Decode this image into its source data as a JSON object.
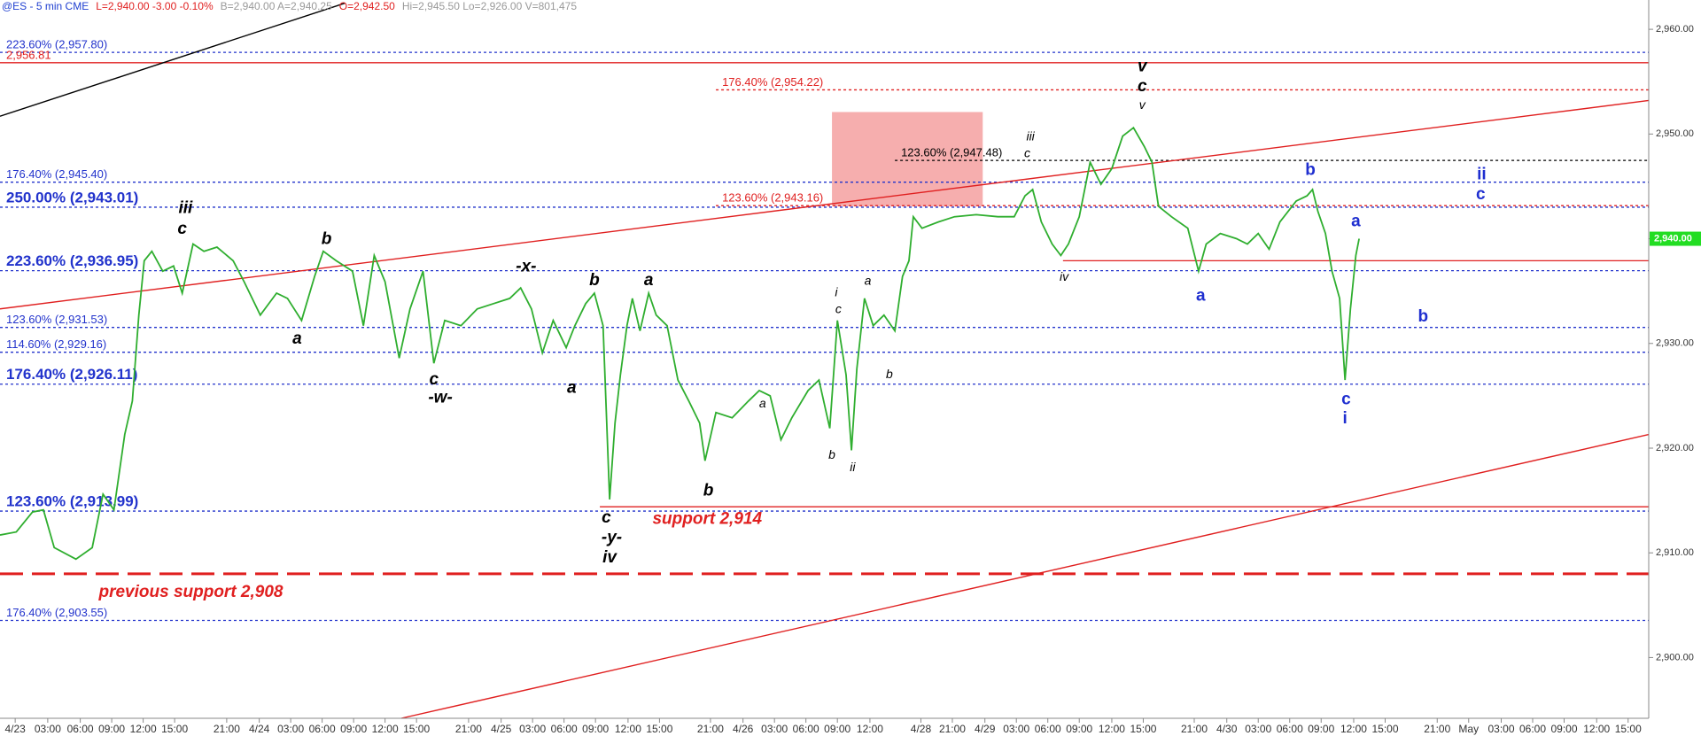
{
  "chart_data": {
    "type": "line",
    "header": [
      {
        "text": "@ES - 5 min  CME",
        "color": "#1f3fd0"
      },
      {
        "text": "L=2,940.00  -3.00  -0.10%",
        "color": "#e02020"
      },
      {
        "text": "B=2,940.00  A=2,940.25",
        "color": "#999999"
      },
      {
        "text": "O=2,942.50",
        "color": "#e02020"
      },
      {
        "text": "Hi=2,945.50  Lo=2,926.00  V=801,475",
        "color": "#999999"
      }
    ],
    "ylim": [
      2894.2,
      2962.8
    ],
    "yticks": [
      {
        "value": 2900,
        "label": "2,900.00"
      },
      {
        "value": 2910,
        "label": "2,910.00"
      },
      {
        "value": 2920,
        "label": "2,920.00"
      },
      {
        "value": 2930,
        "label": "2,930.00"
      },
      {
        "value": 2940,
        "label": "2,940.00"
      },
      {
        "value": 2950,
        "label": "2,950.00"
      },
      {
        "value": 2960,
        "label": "2,960.00"
      }
    ],
    "xlim": [
      0,
      152
    ],
    "xticks": [
      {
        "value": 1.4,
        "label": "4/23"
      },
      {
        "value": 4.4,
        "label": "03:00"
      },
      {
        "value": 7.4,
        "label": "06:00"
      },
      {
        "value": 10.3,
        "label": "09:00"
      },
      {
        "value": 13.2,
        "label": "12:00"
      },
      {
        "value": 16.1,
        "label": "15:00"
      },
      {
        "value": 20.9,
        "label": "21:00"
      },
      {
        "value": 23.9,
        "label": "4/24"
      },
      {
        "value": 26.8,
        "label": "03:00"
      },
      {
        "value": 29.7,
        "label": "06:00"
      },
      {
        "value": 32.6,
        "label": "09:00"
      },
      {
        "value": 35.5,
        "label": "12:00"
      },
      {
        "value": 38.4,
        "label": "15:00"
      },
      {
        "value": 43.2,
        "label": "21:00"
      },
      {
        "value": 46.2,
        "label": "4/25"
      },
      {
        "value": 49.1,
        "label": "03:00"
      },
      {
        "value": 52.0,
        "label": "06:00"
      },
      {
        "value": 54.9,
        "label": "09:00"
      },
      {
        "value": 57.9,
        "label": "12:00"
      },
      {
        "value": 60.8,
        "label": "15:00"
      },
      {
        "value": 65.5,
        "label": "21:00"
      },
      {
        "value": 68.5,
        "label": "4/26"
      },
      {
        "value": 71.4,
        "label": "03:00"
      },
      {
        "value": 74.3,
        "label": "06:00"
      },
      {
        "value": 77.2,
        "label": "09:00"
      },
      {
        "value": 80.2,
        "label": "12:00"
      },
      {
        "value": 84.9,
        "label": "4/28"
      },
      {
        "value": 87.8,
        "label": "21:00"
      },
      {
        "value": 90.8,
        "label": "4/29"
      },
      {
        "value": 93.7,
        "label": "03:00"
      },
      {
        "value": 96.6,
        "label": "06:00"
      },
      {
        "value": 99.5,
        "label": "09:00"
      },
      {
        "value": 102.5,
        "label": "12:00"
      },
      {
        "value": 105.4,
        "label": "15:00"
      },
      {
        "value": 110.1,
        "label": "21:00"
      },
      {
        "value": 113.1,
        "label": "4/30"
      },
      {
        "value": 116.0,
        "label": "03:00"
      },
      {
        "value": 118.9,
        "label": "06:00"
      },
      {
        "value": 121.8,
        "label": "09:00"
      },
      {
        "value": 124.8,
        "label": "12:00"
      },
      {
        "value": 127.7,
        "label": "15:00"
      },
      {
        "value": 132.5,
        "label": "21:00"
      },
      {
        "value": 135.4,
        "label": "May"
      },
      {
        "value": 138.4,
        "label": "03:00"
      },
      {
        "value": 141.3,
        "label": "06:00"
      },
      {
        "value": 144.2,
        "label": "09:00"
      },
      {
        "value": 147.2,
        "label": "12:00"
      },
      {
        "value": 150.1,
        "label": "15:00"
      }
    ],
    "last_price": {
      "value": 2940,
      "label": "2,940.00",
      "color": "#22dd22"
    },
    "series": [
      {
        "color": "#2fae2f",
        "x": [
          0,
          1.5,
          3,
          4,
          5,
          7,
          8.5,
          9.5,
          10.5,
          11.5,
          12.2,
          12.8,
          13.3,
          14,
          15,
          16,
          16.8,
          17.8,
          18.8,
          20,
          21.5,
          22.5,
          24,
          25.5,
          26.5,
          27.8,
          29,
          29.8,
          31,
          32.5,
          33.5,
          34.5,
          35.5,
          36.8,
          37.8,
          39,
          40,
          41,
          42.5,
          44,
          45.5,
          47,
          48,
          49,
          50,
          51,
          52.2,
          53,
          54,
          54.8,
          55.6,
          56.2,
          56.7,
          57.2,
          57.8,
          58.3,
          59,
          59.8,
          60.5,
          61.5,
          62.5,
          63.5,
          64.5,
          65,
          66,
          67.5,
          69,
          70,
          71,
          72,
          73,
          74.5,
          75.5,
          76.5,
          77.2,
          78,
          78.5,
          79,
          79.7,
          80.5,
          81.5,
          82.5,
          83.2,
          83.8,
          84.2,
          85,
          86.5,
          88,
          90,
          92,
          93.5,
          94.5,
          95.2,
          96,
          97,
          97.8,
          98.5,
          99.5,
          100.5,
          101.5,
          102.5,
          103.5,
          104.5,
          105.5,
          106.2,
          106.8,
          108,
          109.5,
          110.5,
          111.2,
          112.5,
          114,
          115,
          116,
          117,
          118,
          119.5,
          120.5,
          121,
          121.5,
          122.2,
          122.8,
          123.5,
          124,
          124.5,
          125,
          125.3
        ],
        "values": [
          2911.7,
          2912.0,
          2913.9,
          2914.1,
          2910.5,
          2909.4,
          2910.5,
          2915.6,
          2914.1,
          2921.3,
          2924.5,
          2932.7,
          2937.9,
          2938.8,
          2936.9,
          2937.4,
          2934.8,
          2939.5,
          2938.8,
          2939.2,
          2937.9,
          2935.9,
          2932.7,
          2934.8,
          2934.3,
          2932.2,
          2936.4,
          2938.8,
          2937.9,
          2936.9,
          2931.7,
          2938.4,
          2935.9,
          2928.6,
          2933.3,
          2936.9,
          2928.1,
          2932.2,
          2931.7,
          2933.3,
          2933.8,
          2934.3,
          2935.3,
          2933.3,
          2929.1,
          2932.2,
          2929.6,
          2931.7,
          2933.8,
          2934.8,
          2931.7,
          2915.1,
          2922.4,
          2927.0,
          2931.7,
          2934.3,
          2931.2,
          2934.8,
          2932.7,
          2931.7,
          2926.5,
          2924.5,
          2922.4,
          2918.8,
          2923.4,
          2922.9,
          2924.5,
          2925.5,
          2925.0,
          2920.8,
          2922.9,
          2925.5,
          2926.5,
          2921.9,
          2932.2,
          2927.0,
          2919.8,
          2927.6,
          2934.3,
          2931.7,
          2932.7,
          2931.2,
          2936.4,
          2937.9,
          2942.1,
          2941.0,
          2941.6,
          2942.1,
          2942.3,
          2942.1,
          2942.1,
          2944.1,
          2944.7,
          2941.6,
          2939.5,
          2938.4,
          2939.5,
          2942.1,
          2947.3,
          2945.2,
          2946.7,
          2949.8,
          2950.6,
          2948.8,
          2947.3,
          2943.1,
          2942.1,
          2941.0,
          2936.9,
          2939.5,
          2940.5,
          2940.0,
          2939.5,
          2940.5,
          2939.0,
          2941.6,
          2943.6,
          2944.1,
          2944.7,
          2942.6,
          2940.5,
          2936.9,
          2934.3,
          2926.5,
          2933.3,
          2938.4,
          2940.0
        ]
      }
    ],
    "levels": [
      {
        "label": "223.60% (2,957.80)",
        "value": 2957.8,
        "color": "#2233cc",
        "style": "dotted",
        "bold": false,
        "x_start": 0
      },
      {
        "label": "2,956.81",
        "value": 2956.81,
        "color": "#e02020",
        "style": "solid",
        "bold": false,
        "x_start": 0
      },
      {
        "label": "176.40% (2,954.22)",
        "value": 2954.22,
        "color": "#e02020",
        "style": "dotted",
        "bold": false,
        "x_start": 66
      },
      {
        "label": "123.60% (2,947.48)",
        "value": 2947.48,
        "color": "#000000",
        "style": "dotted",
        "bold": false,
        "x_start": 82.5
      },
      {
        "label": "176.40% (2,945.40)",
        "value": 2945.4,
        "color": "#2233cc",
        "style": "dotted",
        "bold": false,
        "x_start": 0
      },
      {
        "label": "123.60% (2,943.16)",
        "value": 2943.16,
        "color": "#e02020",
        "style": "dotted",
        "bold": false,
        "x_start": 66
      },
      {
        "label": "250.00% (2,943.01)",
        "value": 2943.01,
        "color": "#2233cc",
        "style": "dotted",
        "bold": true,
        "x_start": 0
      },
      {
        "value": 2937.9,
        "color": "#e02020",
        "style": "solid",
        "bold": false,
        "x_start": 98
      },
      {
        "label": "223.60% (2,936.95)",
        "value": 2936.95,
        "color": "#2233cc",
        "style": "dotted",
        "bold": true,
        "x_start": 0
      },
      {
        "label": "123.60% (2,931.53)",
        "value": 2931.53,
        "color": "#2233cc",
        "style": "dotted",
        "bold": false,
        "x_start": 0
      },
      {
        "label": "114.60% (2,929.16)",
        "value": 2929.16,
        "color": "#2233cc",
        "style": "dotted",
        "bold": false,
        "x_start": 0
      },
      {
        "label": "176.40% (2,926.11)",
        "value": 2926.11,
        "color": "#2233cc",
        "style": "dotted",
        "bold": true,
        "x_start": 0
      },
      {
        "value": 2914.4,
        "color": "#e02020",
        "style": "solid",
        "bold": false,
        "x_start": 55.3
      },
      {
        "label": "123.60% (2,913.99)",
        "value": 2913.99,
        "color": "#2233cc",
        "style": "dotted",
        "bold": true,
        "x_start": 0
      },
      {
        "value": 2908,
        "color": "#e02020",
        "style": "dashed",
        "bold": false,
        "x_start": 0
      },
      {
        "label": "176.40% (2,903.55)",
        "value": 2903.55,
        "color": "#2233cc",
        "style": "dotted",
        "bold": false,
        "x_start": 0
      }
    ],
    "trendlines": [
      {
        "x": [
          0,
          31.8
        ],
        "values": [
          2951.7,
          2962.5
        ],
        "color": "#000000"
      },
      {
        "x": [
          0,
          152
        ],
        "values": [
          2933.3,
          2953.2
        ],
        "color": "#e02020"
      },
      {
        "x": [
          37,
          152
        ],
        "values": [
          2894.2,
          2921.3
        ],
        "color": "#e02020"
      }
    ],
    "zone": {
      "x": [
        76.7,
        90.6
      ],
      "values": [
        2952.1,
        2943.1
      ],
      "color": "#f4a0a0"
    },
    "annotations": [
      {
        "text": "iii",
        "x": 17.1,
        "y": 2942.9,
        "color": "#000000",
        "size": "large"
      },
      {
        "text": "c",
        "x": 16.8,
        "y": 2940.9,
        "color": "#000000",
        "size": "large"
      },
      {
        "text": "b",
        "x": 30.1,
        "y": 2939.9,
        "color": "#000000",
        "size": "large"
      },
      {
        "text": "a",
        "x": 27.4,
        "y": 2930.4,
        "color": "#000000",
        "size": "large"
      },
      {
        "text": "c",
        "x": 40.0,
        "y": 2926.5,
        "color": "#000000",
        "size": "large"
      },
      {
        "text": "-w-",
        "x": 40.6,
        "y": 2924.8,
        "color": "#000000",
        "size": "large"
      },
      {
        "text": "-x-",
        "x": 48.5,
        "y": 2937.3,
        "color": "#000000",
        "size": "large"
      },
      {
        "text": "b",
        "x": 54.8,
        "y": 2936.0,
        "color": "#000000",
        "size": "large"
      },
      {
        "text": "a",
        "x": 52.7,
        "y": 2925.7,
        "color": "#000000",
        "size": "large"
      },
      {
        "text": "a",
        "x": 59.8,
        "y": 2936.0,
        "color": "#000000",
        "size": "large"
      },
      {
        "text": "c",
        "x": 55.9,
        "y": 2913.3,
        "color": "#000000",
        "size": "large"
      },
      {
        "text": "-y-",
        "x": 56.4,
        "y": 2911.4,
        "color": "#000000",
        "size": "large"
      },
      {
        "text": "iv",
        "x": 56.2,
        "y": 2909.5,
        "color": "#000000",
        "size": "large"
      },
      {
        "text": "b",
        "x": 65.3,
        "y": 2915.9,
        "color": "#000000",
        "size": "large"
      },
      {
        "text": "a",
        "x": 70.3,
        "y": 2924.2,
        "color": "#000000",
        "size": "small"
      },
      {
        "text": "i",
        "x": 77.1,
        "y": 2934.8,
        "color": "#000000",
        "size": "small"
      },
      {
        "text": "c",
        "x": 77.3,
        "y": 2933.2,
        "color": "#000000",
        "size": "small"
      },
      {
        "text": "a",
        "x": 80.0,
        "y": 2935.9,
        "color": "#000000",
        "size": "small"
      },
      {
        "text": "b",
        "x": 82.0,
        "y": 2927.0,
        "color": "#000000",
        "size": "small"
      },
      {
        "text": "b",
        "x": 76.7,
        "y": 2919.3,
        "color": "#000000",
        "size": "small"
      },
      {
        "text": "ii",
        "x": 78.6,
        "y": 2918.1,
        "color": "#000000",
        "size": "small"
      },
      {
        "text": "iii",
        "x": 95.0,
        "y": 2949.7,
        "color": "#000000",
        "size": "small"
      },
      {
        "text": "c",
        "x": 94.7,
        "y": 2948.1,
        "color": "#000000",
        "size": "small"
      },
      {
        "text": "iv",
        "x": 98.1,
        "y": 2936.3,
        "color": "#000000",
        "size": "small"
      },
      {
        "text": "v",
        "x": 105.3,
        "y": 2956.4,
        "color": "#000000",
        "size": "large"
      },
      {
        "text": "c",
        "x": 105.3,
        "y": 2954.5,
        "color": "#000000",
        "size": "large"
      },
      {
        "text": "v",
        "x": 105.3,
        "y": 2952.7,
        "color": "#000000",
        "size": "small"
      },
      {
        "text": "b",
        "x": 120.8,
        "y": 2946.5,
        "color": "#1f2fd0",
        "size": "blue"
      },
      {
        "text": "a",
        "x": 125.0,
        "y": 2941.6,
        "color": "#1f2fd0",
        "size": "blue"
      },
      {
        "text": "a",
        "x": 110.7,
        "y": 2934.5,
        "color": "#1f2fd0",
        "size": "blue"
      },
      {
        "text": "c",
        "x": 124.1,
        "y": 2924.6,
        "color": "#1f2fd0",
        "size": "blue"
      },
      {
        "text": "i",
        "x": 124.0,
        "y": 2922.8,
        "color": "#1f2fd0",
        "size": "blue"
      },
      {
        "text": "b",
        "x": 131.2,
        "y": 2932.5,
        "color": "#1f2fd0",
        "size": "blue"
      },
      {
        "text": "ii",
        "x": 136.6,
        "y": 2946.1,
        "color": "#1f2fd0",
        "size": "blue"
      },
      {
        "text": "c",
        "x": 136.5,
        "y": 2944.2,
        "color": "#1f2fd0",
        "size": "blue"
      },
      {
        "text": "support 2,914",
        "x": 65.2,
        "y": 2913.2,
        "color": "#e02020",
        "size": "note"
      },
      {
        "text": "previous support 2,908",
        "x": 17.6,
        "y": 2906.2,
        "color": "#e02020",
        "size": "note"
      }
    ]
  }
}
